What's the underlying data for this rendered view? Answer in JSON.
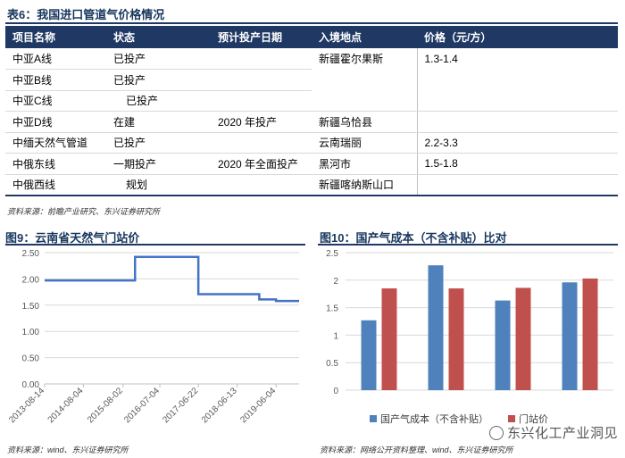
{
  "table": {
    "title": "表6：我国进口管道气价格情况",
    "headers": [
      "项目名称",
      "状态",
      "预计投产日期",
      "入境地点",
      "价格（元/方）"
    ],
    "rows": [
      [
        "中亚A线",
        "已投产",
        "",
        "新疆霍尔果斯",
        "1.3-1.4"
      ],
      [
        "中亚B线",
        "已投产",
        "",
        "",
        ""
      ],
      [
        "中亚C线",
        "已投产",
        "",
        "",
        ""
      ],
      [
        "中亚D线",
        "在建",
        "2020 年投产",
        "新疆乌恰县",
        ""
      ],
      [
        "中缅天然气管道",
        "已投产",
        "",
        "云南瑞丽",
        "2.2-3.3"
      ],
      [
        "中俄东线",
        "一期投产",
        "2020 年全面投产",
        "黑河市",
        "1.5-1.8"
      ],
      [
        "中俄西线",
        "规划",
        "",
        "新疆喀纳斯山口",
        ""
      ]
    ],
    "source": "资料来源：前瞻产业研究、东兴证券研究所"
  },
  "charts_meta": {
    "left_title": "图9：云南省天然气门站价",
    "left_source": "资料来源：wind、东兴证券研究所",
    "right_title": "图10：国产气成本（不含补贴）比对",
    "right_source": "资料来源：网络公开资料整理、wind、东兴证券研究所",
    "watermark": "东兴化工产业洞见"
  },
  "chart_data": [
    {
      "type": "line",
      "title": "图9：云南省天然气门站价",
      "x": [
        "2013-08-14",
        "2015-08-02",
        "2015-11-20",
        "2017-06-22",
        "2018-04-01",
        "2019-01-01",
        "2019-06-04",
        "2020-01-01"
      ],
      "y": [
        1.97,
        1.97,
        2.42,
        1.71,
        1.71,
        1.61,
        1.58,
        1.58
      ],
      "step": true,
      "xticks": [
        "2013-08-14",
        "2014-08-04",
        "2015-08-02",
        "2016-07-04",
        "2017-06-22",
        "2018-06-13",
        "2019-06-04"
      ],
      "yticks": [
        "0.00",
        "0.50",
        "1.00",
        "1.50",
        "2.00",
        "2.50"
      ],
      "ylim": [
        0,
        2.5
      ],
      "xlim": [
        "2013-08-14",
        "2020-01-01"
      ],
      "color": "#4472c4"
    },
    {
      "type": "bar",
      "title": "图10：国产气成本（不含补贴）比对",
      "categories": [
        "",
        "",
        "",
        ""
      ],
      "series": [
        {
          "name": "国产气成本（不含补贴）",
          "values": [
            1.27,
            2.27,
            1.63,
            1.96
          ],
          "color": "#4f81bd"
        },
        {
          "name": "门站价",
          "values": [
            1.85,
            1.85,
            1.86,
            2.03
          ],
          "color": "#c0504d"
        }
      ],
      "yticks": [
        "0",
        "0.5",
        "1",
        "1.5",
        "2",
        "2.5"
      ],
      "ylim": [
        0,
        2.5
      ],
      "legend": "bottom"
    }
  ]
}
